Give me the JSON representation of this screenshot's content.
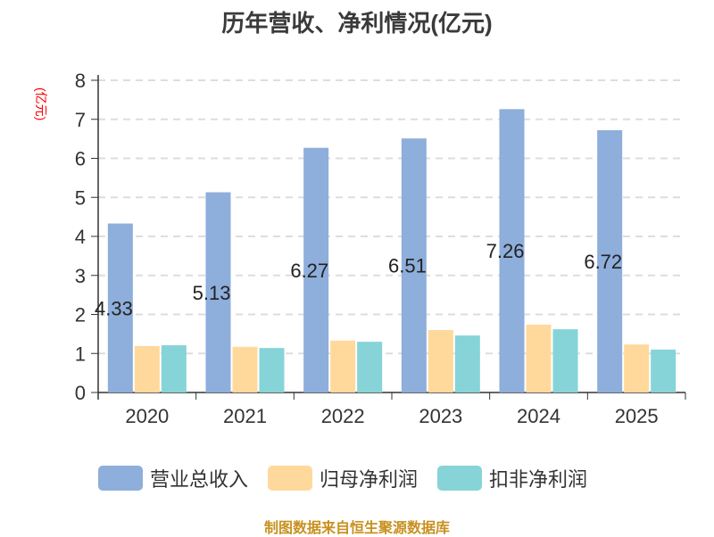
{
  "title": "历年营收、净利情况(亿元)",
  "unit_label": "(亿元)",
  "footer": "制图数据来自恒生聚源数据库",
  "colors": {
    "revenue": "#8eaedb",
    "net_profit": "#ffd99c",
    "deducted_profit": "#86d4d8",
    "axis": "#333333",
    "grid": "#dddddd",
    "unit": "#ff0000",
    "footer": "#c8901f"
  },
  "legend": [
    {
      "label": "营业总收入",
      "color": "#8eaedb"
    },
    {
      "label": "归母净利润",
      "color": "#ffd99c"
    },
    {
      "label": "扣非净利润",
      "color": "#86d4d8"
    }
  ],
  "chart_data": {
    "type": "bar",
    "title": "历年营收、净利情况(亿元)",
    "xlabel": "",
    "ylabel": "(亿元)",
    "ylim": [
      0,
      8
    ],
    "yticks": [
      0,
      1,
      2,
      3,
      4,
      5,
      6,
      7,
      8
    ],
    "grid": true,
    "legend_position": "bottom",
    "categories": [
      "2020",
      "2021",
      "2022",
      "2023",
      "2024",
      "2025"
    ],
    "series": [
      {
        "name": "营业总收入",
        "values": [
          4.33,
          5.13,
          6.27,
          6.51,
          7.26,
          6.72
        ],
        "labels": [
          "4.33",
          "5.13",
          "6.27",
          "6.51",
          "7.26",
          "6.72"
        ]
      },
      {
        "name": "归母净利润",
        "values": [
          1.19,
          1.17,
          1.33,
          1.6,
          1.74,
          1.23
        ]
      },
      {
        "name": "扣非净利润",
        "values": [
          1.21,
          1.14,
          1.3,
          1.46,
          1.62,
          1.1
        ]
      }
    ]
  }
}
